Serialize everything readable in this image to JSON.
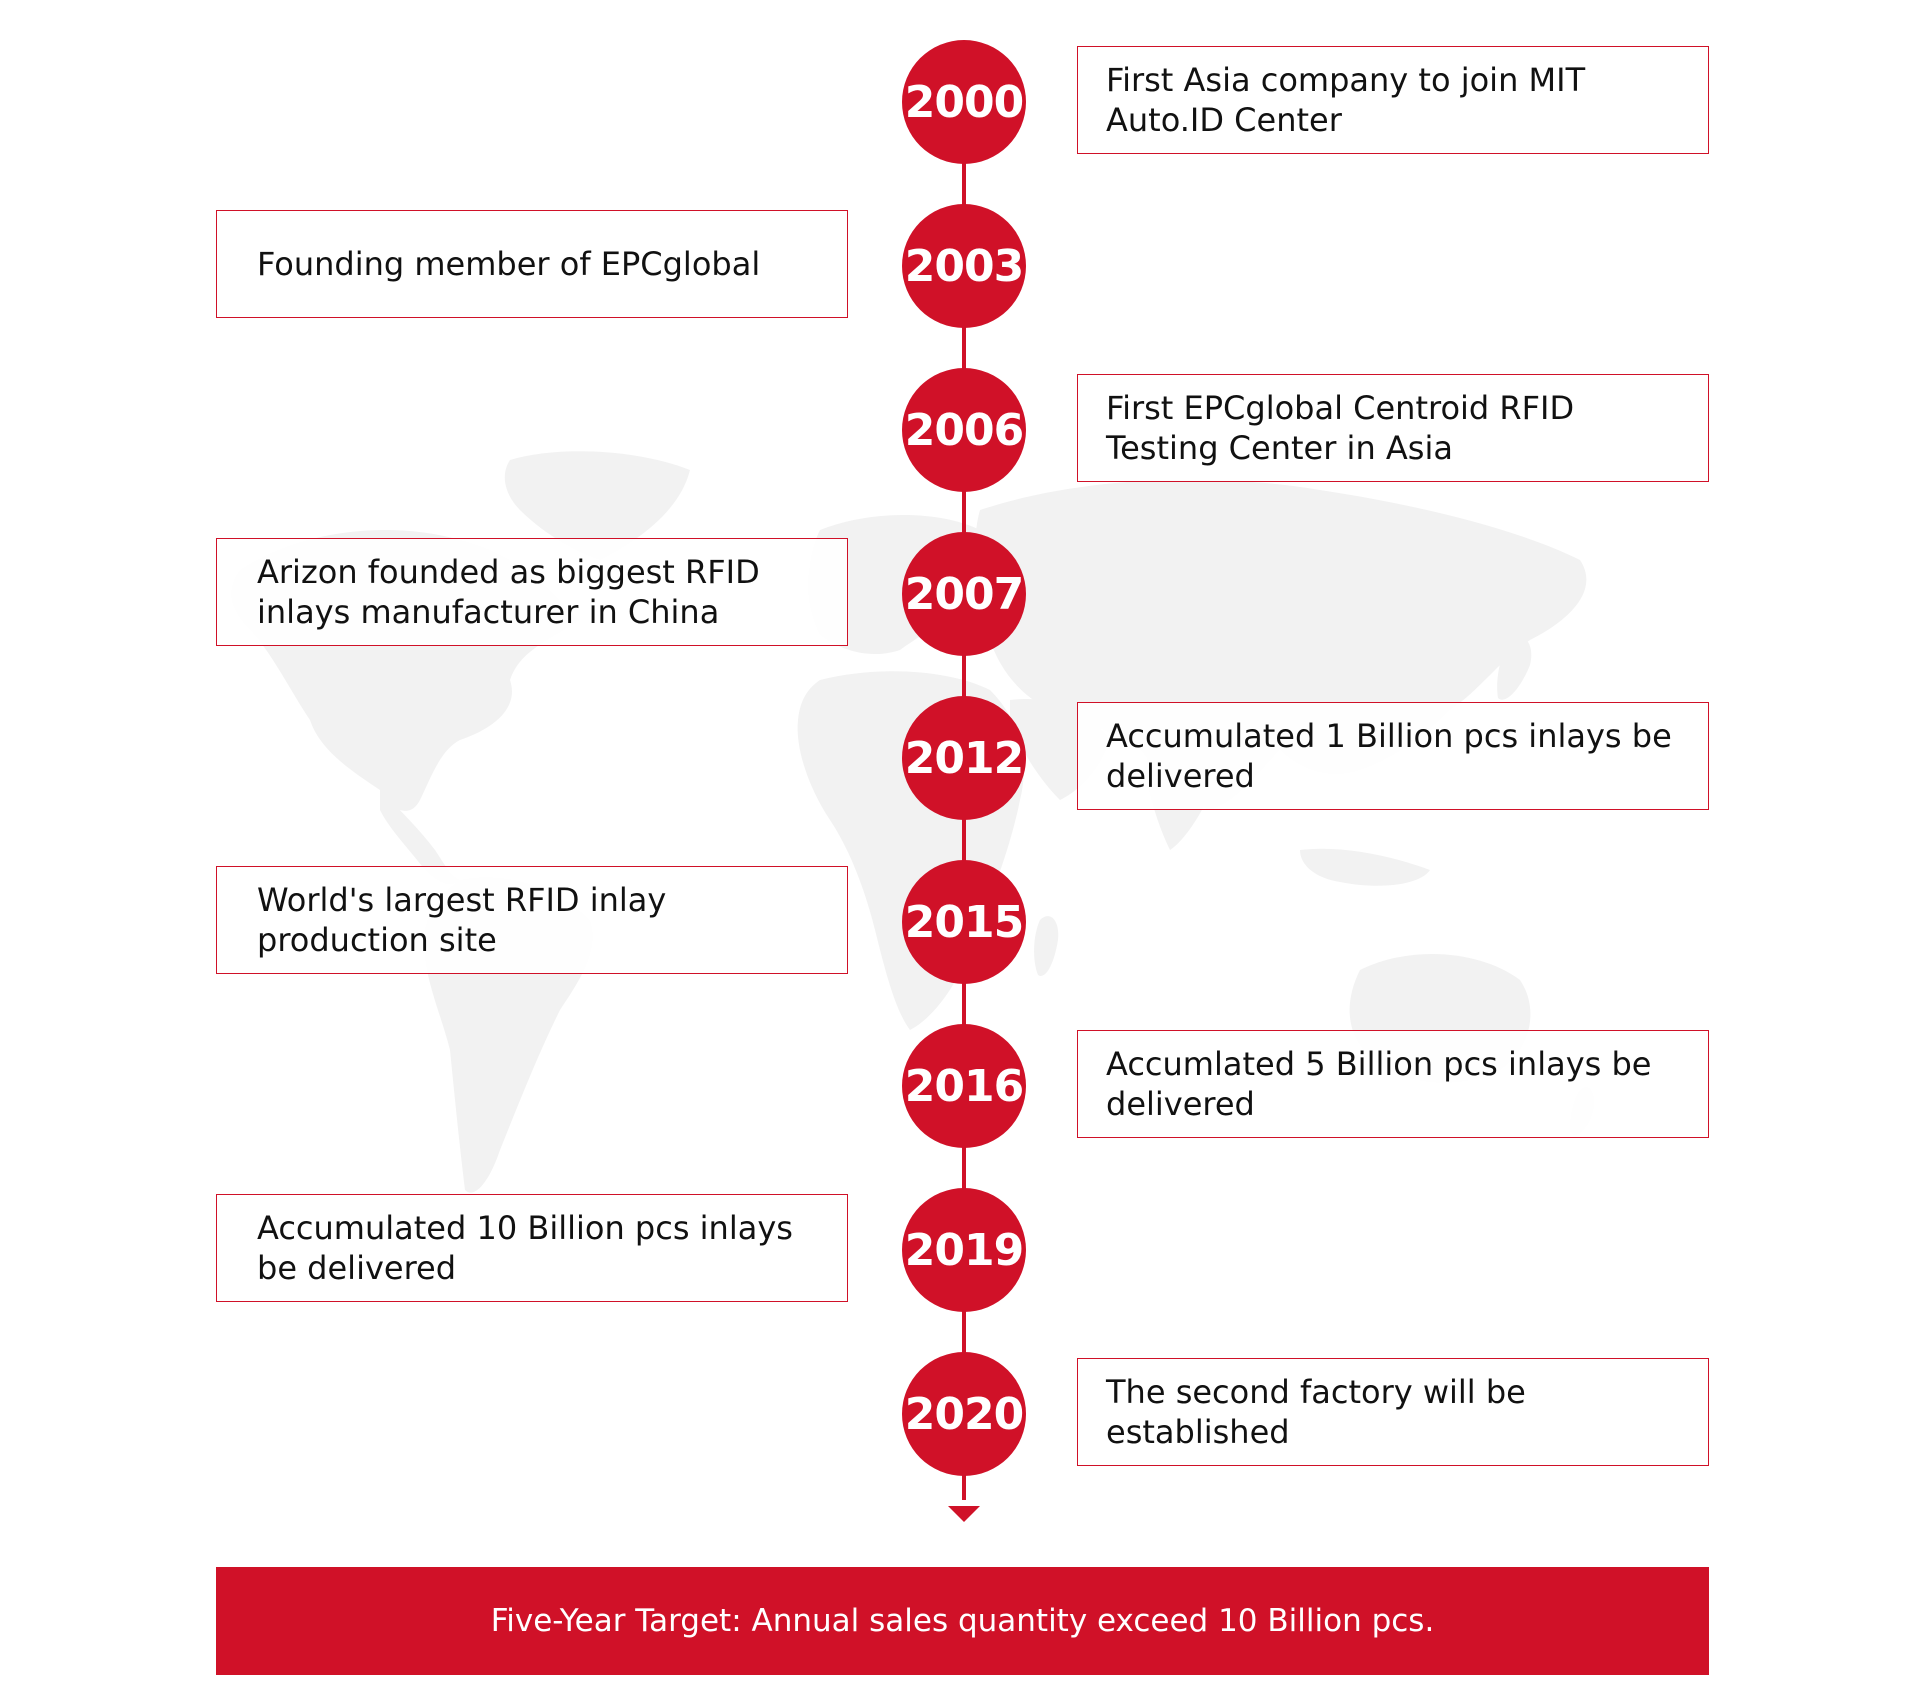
{
  "colors": {
    "accent": "#d01128",
    "map": "#f2f2f2",
    "text": "#111111"
  },
  "timeline": [
    {
      "year": "2000",
      "text": "First Asia company to join MIT Auto.ID Center"
    },
    {
      "year": "2003",
      "text": "Founding member of EPCglobal"
    },
    {
      "year": "2006",
      "text": "First EPCglobal Centroid RFID Testing Center in Asia"
    },
    {
      "year": "2007",
      "text": "Arizon founded as biggest RFID inlays manufacturer in China"
    },
    {
      "year": "2012",
      "text": "Accumulated 1 Billion pcs inlays be delivered"
    },
    {
      "year": "2015",
      "text": "World's largest RFID inlay production site"
    },
    {
      "year": "2016",
      "text": "Accumlated 5 Billion pcs inlays be delivered"
    },
    {
      "year": "2019",
      "text": "Accumulated 10 Billion pcs inlays be delivered"
    },
    {
      "year": "2020",
      "text": "The second factory will be established"
    }
  ],
  "target": {
    "text": "Five-Year Target: Annual sales quantity exceed 10 Billion pcs."
  }
}
